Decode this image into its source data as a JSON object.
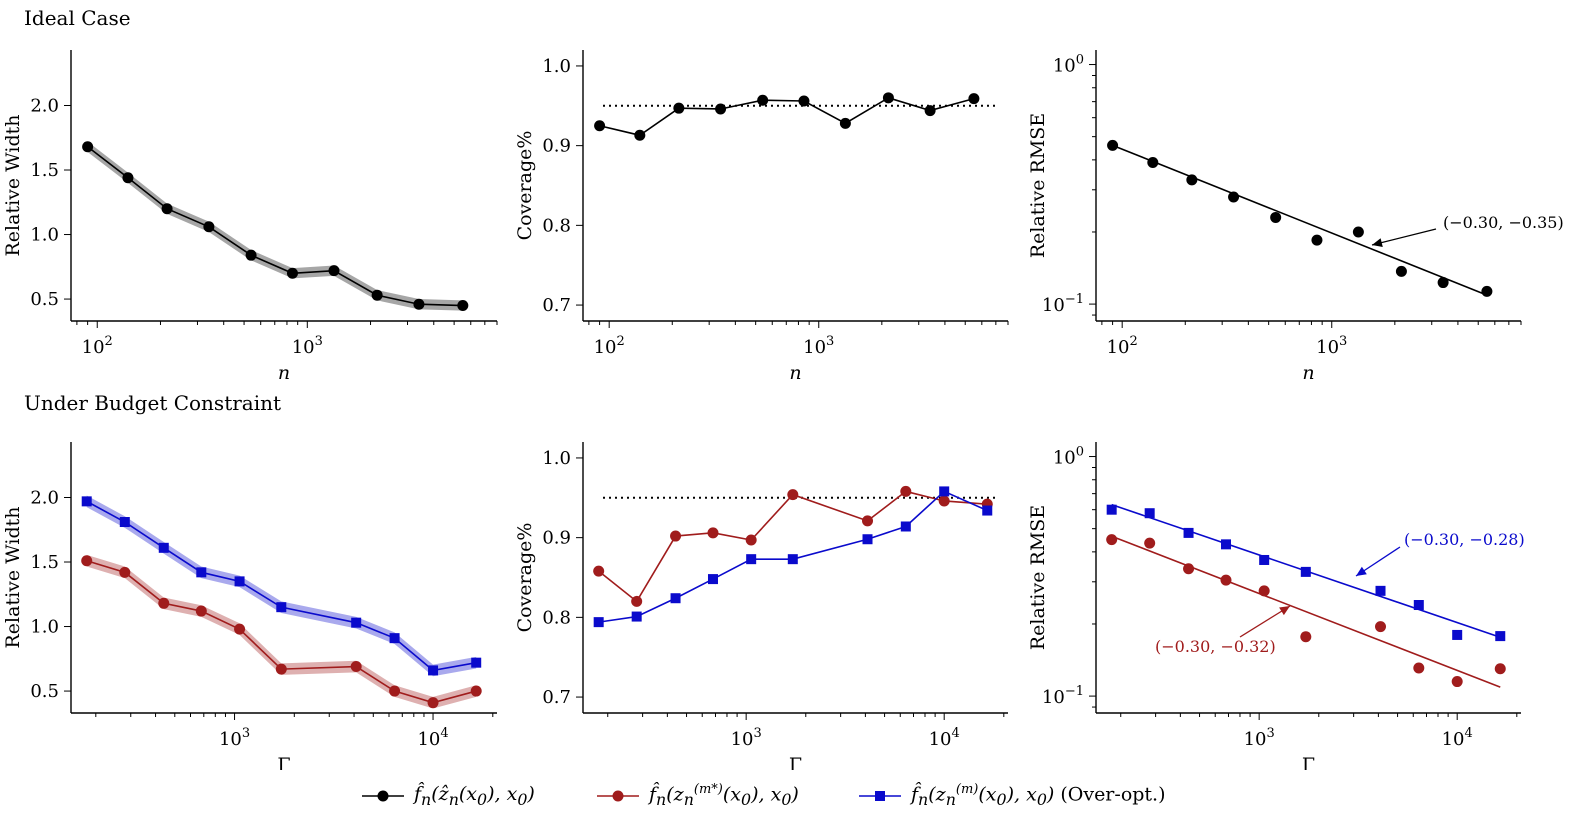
{
  "row_titles": [
    "Ideal Case",
    "Under Budget Constraint"
  ],
  "legend": [
    {
      "key": "ideal",
      "label": "f̂n(ẑn(x0), x0)",
      "color": "#000000",
      "marker": "circle"
    },
    {
      "key": "mstar",
      "label": "f̂n(zn(m*)(x0), x0)",
      "color": "#a01c1c",
      "marker": "circle"
    },
    {
      "key": "overopt",
      "label": "f̂n(zn(m)(x0), x0) (Over-opt.)",
      "color": "#0a0acc",
      "marker": "square"
    }
  ],
  "chart_data": [
    {
      "type": "line",
      "panel": "ideal-width",
      "xscale": "log",
      "xlabel": "n",
      "ylabel": "Relative Width",
      "xlim": [
        75,
        8000
      ],
      "ylim": [
        0.33,
        2.43
      ],
      "yticks": [
        "0.5",
        "1.0",
        "1.5",
        "2.0"
      ],
      "xticks": [
        "10^2",
        "10^3"
      ],
      "series": [
        {
          "key": "ideal",
          "band": 0.04,
          "x": [
            90,
            140,
            215,
            340,
            540,
            850,
            1340,
            2150,
            3400,
            5500
          ],
          "y": [
            1.68,
            1.44,
            1.2,
            1.06,
            0.84,
            0.7,
            0.72,
            0.53,
            0.46,
            0.45
          ]
        }
      ]
    },
    {
      "type": "line",
      "panel": "ideal-coverage",
      "xscale": "log",
      "xlabel": "n",
      "ylabel": "Coverage%",
      "xlim": [
        75,
        8000
      ],
      "ylim": [
        0.68,
        1.02
      ],
      "yticks": [
        "0.7",
        "0.8",
        "0.9",
        "1.0"
      ],
      "xticks": [
        "10^2",
        "10^3"
      ],
      "reference_line": 0.95,
      "series": [
        {
          "key": "ideal",
          "x": [
            90,
            140,
            215,
            340,
            540,
            850,
            1340,
            2150,
            3400,
            5500
          ],
          "y": [
            0.925,
            0.913,
            0.947,
            0.946,
            0.957,
            0.956,
            0.928,
            0.96,
            0.944,
            0.959
          ]
        }
      ]
    },
    {
      "type": "scatter",
      "panel": "ideal-rmse",
      "xscale": "log",
      "yscale": "log",
      "xlabel": "n",
      "ylabel": "Relative RMSE",
      "xlim": [
        75,
        8000
      ],
      "ylim": [
        0.085,
        1.15
      ],
      "yticks": [
        "10^-1",
        "10^0"
      ],
      "xticks": [
        "10^2",
        "10^3"
      ],
      "series": [
        {
          "key": "ideal",
          "x": [
            90,
            140,
            215,
            340,
            540,
            850,
            1340,
            2150,
            3400,
            5500
          ],
          "y": [
            0.46,
            0.39,
            0.33,
            0.28,
            0.23,
            0.185,
            0.2,
            0.137,
            0.123,
            0.113
          ],
          "fit": {
            "x": [
              90,
              5500
            ],
            "y": [
              0.46,
              0.109
            ]
          },
          "annotation": "(−0.30, −0.35)"
        }
      ]
    },
    {
      "type": "line",
      "panel": "budget-width",
      "xscale": "log",
      "xlabel": "Γ",
      "ylabel": "Relative Width",
      "xlim": [
        150,
        21000
      ],
      "ylim": [
        0.33,
        2.43
      ],
      "yticks": [
        "0.5",
        "1.0",
        "1.5",
        "2.0"
      ],
      "xticks": [
        "10^3",
        "10^4"
      ],
      "series": [
        {
          "key": "overopt",
          "band": 0.045,
          "x": [
            180,
            280,
            440,
            680,
            1060,
            1720,
            4100,
            6400,
            10000,
            16500
          ],
          "y": [
            1.97,
            1.81,
            1.61,
            1.42,
            1.35,
            1.15,
            1.03,
            0.91,
            0.66,
            0.72
          ]
        },
        {
          "key": "mstar",
          "band": 0.045,
          "x": [
            180,
            280,
            440,
            680,
            1060,
            1720,
            4100,
            6400,
            10000,
            16500
          ],
          "y": [
            1.51,
            1.42,
            1.18,
            1.12,
            0.98,
            0.67,
            0.69,
            0.5,
            0.41,
            0.5
          ]
        }
      ]
    },
    {
      "type": "line",
      "panel": "budget-coverage",
      "xscale": "log",
      "xlabel": "Γ",
      "ylabel": "Coverage%",
      "xlim": [
        150,
        21000
      ],
      "ylim": [
        0.68,
        1.02
      ],
      "yticks": [
        "0.7",
        "0.8",
        "0.9",
        "1.0"
      ],
      "xticks": [
        "10^3",
        "10^4"
      ],
      "reference_line": 0.95,
      "series": [
        {
          "key": "mstar",
          "x": [
            180,
            280,
            440,
            680,
            1060,
            1720,
            4100,
            6400,
            10000,
            16500
          ],
          "y": [
            0.858,
            0.82,
            0.902,
            0.906,
            0.897,
            0.954,
            0.921,
            0.958,
            0.946,
            0.942
          ]
        },
        {
          "key": "overopt",
          "x": [
            180,
            280,
            440,
            680,
            1060,
            1720,
            4100,
            6400,
            10000,
            16500
          ],
          "y": [
            0.794,
            0.801,
            0.824,
            0.848,
            0.873,
            0.873,
            0.898,
            0.914,
            0.958,
            0.934
          ]
        }
      ]
    },
    {
      "type": "scatter",
      "panel": "budget-rmse",
      "xscale": "log",
      "yscale": "log",
      "xlabel": "Γ",
      "ylabel": "Relative RMSE",
      "xlim": [
        150,
        21000
      ],
      "ylim": [
        0.085,
        1.15
      ],
      "yticks": [
        "10^-1",
        "10^0"
      ],
      "xticks": [
        "10^3",
        "10^4"
      ],
      "series": [
        {
          "key": "overopt",
          "x": [
            180,
            280,
            440,
            680,
            1060,
            1720,
            4100,
            6400,
            10000,
            16500
          ],
          "y": [
            0.6,
            0.58,
            0.48,
            0.43,
            0.37,
            0.33,
            0.275,
            0.24,
            0.18,
            0.178
          ],
          "fit": {
            "x": [
              180,
              16500
            ],
            "y": [
              0.63,
              0.176
            ]
          },
          "annotation": "(−0.30, −0.28)"
        },
        {
          "key": "mstar",
          "x": [
            180,
            280,
            440,
            680,
            1060,
            1720,
            4100,
            6400,
            10000,
            16500
          ],
          "y": [
            0.45,
            0.435,
            0.34,
            0.305,
            0.275,
            0.177,
            0.195,
            0.131,
            0.115,
            0.13
          ],
          "fit": {
            "x": [
              180,
              16500
            ],
            "y": [
              0.465,
              0.109
            ]
          },
          "annotation": "(−0.30, −0.32)"
        }
      ]
    }
  ]
}
